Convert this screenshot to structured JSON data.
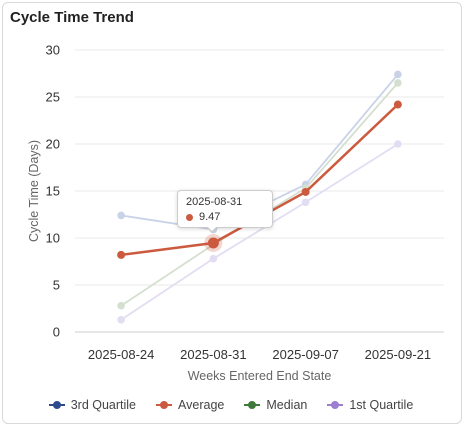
{
  "card": {
    "title": "Cycle Time Trend"
  },
  "chart_data": {
    "type": "line",
    "title": "Cycle Time Trend",
    "xlabel": "Weeks Entered End State",
    "ylabel": "Cycle Time (Days)",
    "categories": [
      "2025-08-24",
      "2025-08-31",
      "2025-09-07",
      "2025-09-21"
    ],
    "ylim": [
      0,
      30
    ],
    "yticks": [
      0,
      5,
      10,
      15,
      20,
      25,
      30
    ],
    "grid": true,
    "legend_position": "bottom",
    "highlighted_series": "Average",
    "series": [
      {
        "name": "3rd Quartile",
        "color": "#2e4a8f",
        "faded_color": "#c9d2e6",
        "values": [
          12.4,
          10.9,
          15.7,
          27.4
        ]
      },
      {
        "name": "Average",
        "color": "#cc5a3e",
        "faded_color": "#cc5a3e",
        "values": [
          8.2,
          9.47,
          14.9,
          24.2
        ]
      },
      {
        "name": "Median",
        "color": "#3f7a3a",
        "faded_color": "#d5dfcf",
        "values": [
          2.8,
          9.3,
          15.3,
          26.5
        ]
      },
      {
        "name": "1st Quartile",
        "color": "#9b7fd1",
        "faded_color": "#e3ddf3",
        "values": [
          1.3,
          7.8,
          13.8,
          20.0
        ]
      }
    ]
  },
  "tooltip": {
    "date": "2025-08-31",
    "value": "9.47",
    "color": "#cc5a3e"
  }
}
